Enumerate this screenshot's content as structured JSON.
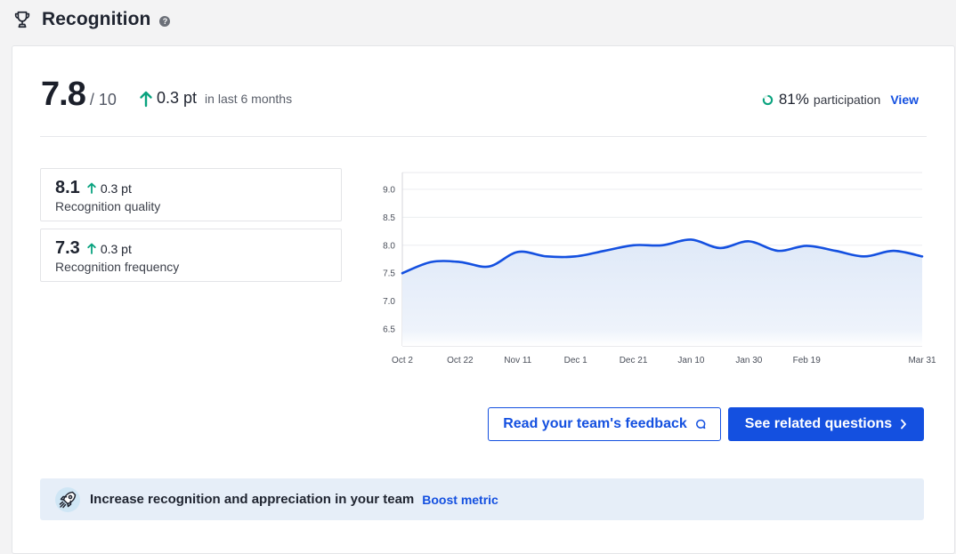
{
  "header": {
    "title": "Recognition",
    "help_icon": "question-circle-icon",
    "title_icon": "trophy-icon"
  },
  "summary": {
    "score": "7.8",
    "score_max": "/ 10",
    "trend_value": "0.3 pt",
    "trend_period": "in last 6 months",
    "participation_value": "81%",
    "participation_label": "participation",
    "view_label": "View",
    "participation_fraction": 0.81
  },
  "sub_metrics": [
    {
      "value": "8.1",
      "trend": "0.3 pt",
      "label": "Recognition quality"
    },
    {
      "value": "7.3",
      "trend": "0.3 pt",
      "label": "Recognition frequency"
    }
  ],
  "chart_data": {
    "type": "area",
    "title": "",
    "xlabel": "",
    "ylabel": "",
    "ylim": [
      6.2,
      9.3
    ],
    "yticks": [
      "6.5",
      "7.0",
      "7.5",
      "8.0",
      "8.5",
      "9.0"
    ],
    "xticks": [
      "Oct 2",
      "Oct 22",
      "Nov 11",
      "Dec 1",
      "Dec 21",
      "Jan 10",
      "Jan 30",
      "Feb 19",
      "Mar 31"
    ],
    "grid": true,
    "x": [
      "Oct 2",
      "Oct 12",
      "Oct 22",
      "Nov 1",
      "Nov 11",
      "Nov 21",
      "Dec 1",
      "Dec 11",
      "Dec 21",
      "Dec 31",
      "Jan 10",
      "Jan 20",
      "Jan 30",
      "Feb 9",
      "Feb 19",
      "Mar 1",
      "Mar 11",
      "Mar 21",
      "Mar 31"
    ],
    "values": [
      7.5,
      7.7,
      7.7,
      7.62,
      7.88,
      7.8,
      7.8,
      7.9,
      8.0,
      8.0,
      8.1,
      7.95,
      8.07,
      7.9,
      7.99,
      7.9,
      7.8,
      7.9,
      7.8
    ],
    "line_color": "#1450e0",
    "fill_color": "#e8f0fb"
  },
  "buttons": {
    "feedback_label": "Read your team's feedback",
    "related_label": "See related questions"
  },
  "banner": {
    "text": "Increase recognition and appreciation in your team",
    "link": "Boost metric"
  },
  "colors": {
    "accent": "#1450e0",
    "positive": "#0aa37f",
    "banner_bg": "#e6eef8"
  }
}
